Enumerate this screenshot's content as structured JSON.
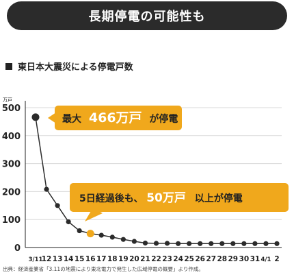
{
  "header": {
    "title": "長期停電の可能性も"
  },
  "subtitle": "東日本大震災による停電戸数",
  "source": "出典：経済産業省「3.11の地震により東北電力で発生した広域停電の概要」より作成。",
  "annotations": {
    "max_prefix": "最大",
    "max_value": "466万戸",
    "max_suffix": "が停電",
    "day5_prefix": "5日経過後も、",
    "day5_value": "50万戸",
    "day5_suffix": "以上が停電"
  },
  "colors": {
    "accent": "#f0a81c",
    "line": "#2b2b2b",
    "banner": "#2b2b2b"
  },
  "chart_data": {
    "type": "line",
    "title": "東日本大震災による停電戸数",
    "ylabel": "万戸",
    "ylim": [
      0,
      500
    ],
    "yticks": [
      "0",
      "100",
      "200",
      "300",
      "400",
      "500"
    ],
    "categories": [
      "3/11",
      "12",
      "13",
      "14",
      "15",
      "16",
      "17",
      "18",
      "19",
      "20",
      "21",
      "22",
      "23",
      "24",
      "25",
      "26",
      "27",
      "28",
      "29",
      "30",
      "31",
      "4/1",
      "2"
    ],
    "values": [
      466,
      208,
      150,
      92,
      60,
      50,
      44,
      37,
      29,
      22,
      16,
      15,
      15,
      14,
      14,
      14,
      14,
      14,
      14,
      14,
      14,
      14,
      14
    ],
    "highlight_index": 5,
    "grid": true,
    "legend": "none"
  }
}
